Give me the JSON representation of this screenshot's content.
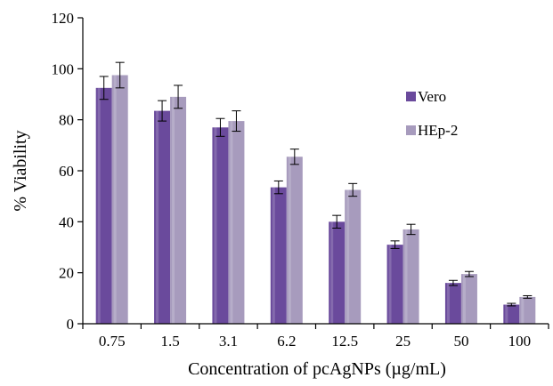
{
  "chart_data": {
    "type": "bar",
    "categories": [
      "0.75",
      "1.5",
      "3.1",
      "6.2",
      "12.5",
      "25",
      "50",
      "100"
    ],
    "series": [
      {
        "name": "Vero",
        "values": [
          92.5,
          83.5,
          77,
          53.5,
          40,
          31,
          16,
          7.5
        ],
        "errors": [
          4.5,
          4,
          3.5,
          2.5,
          2.5,
          1.5,
          1,
          0.5
        ],
        "color": "#6a4a9c"
      },
      {
        "name": "HEp-2",
        "values": [
          97.5,
          89,
          79.5,
          65.5,
          52.5,
          37,
          19.5,
          10.5
        ],
        "errors": [
          5,
          4.5,
          4,
          3,
          2.5,
          2,
          1,
          0.5
        ],
        "color": "#a79bbd"
      }
    ],
    "xlabel": "Concentration of pcAgNPs (µg/mL)",
    "ylabel": "% Viability",
    "ylim": [
      0,
      120
    ],
    "yticks": [
      0,
      20,
      40,
      60,
      80,
      100,
      120
    ],
    "grid": false,
    "legend": "right"
  }
}
